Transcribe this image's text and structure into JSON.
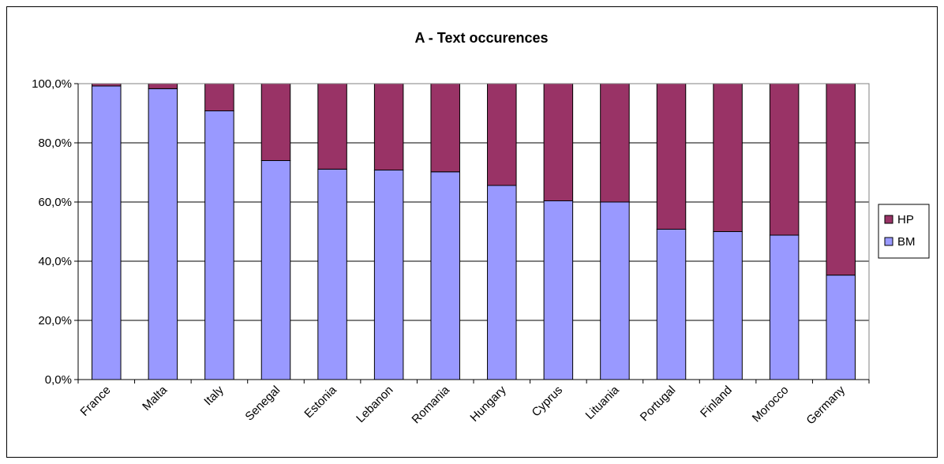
{
  "chart_data": {
    "type": "bar",
    "stacked": true,
    "title": "A - Text occurences",
    "categories": [
      "France",
      "Malta",
      "Italy",
      "Senegal",
      "Estonia",
      "Lebanon",
      "Romania",
      "Hungary",
      "Cyprus",
      "Lituania",
      "Portugal",
      "Finland",
      "Morocco",
      "Germany"
    ],
    "series": [
      {
        "name": "BM",
        "color": "#9999ff",
        "values": [
          99.2,
          98.3,
          90.8,
          74.0,
          71.1,
          70.8,
          70.2,
          65.6,
          60.4,
          60.0,
          50.8,
          50.0,
          48.8,
          35.3
        ]
      },
      {
        "name": "HP",
        "color": "#993366",
        "values": [
          0.8,
          1.7,
          9.2,
          26.0,
          28.9,
          29.2,
          29.8,
          34.4,
          39.6,
          40.0,
          49.2,
          50.0,
          51.2,
          64.7
        ]
      }
    ],
    "ylim": [
      0,
      100
    ],
    "yticks": [
      "0,0%",
      "20,0%",
      "40,0%",
      "60,0%",
      "80,0%",
      "100,0%"
    ],
    "grid": true,
    "legend": {
      "placement": "right",
      "entries": [
        "HP",
        "BM"
      ]
    }
  }
}
